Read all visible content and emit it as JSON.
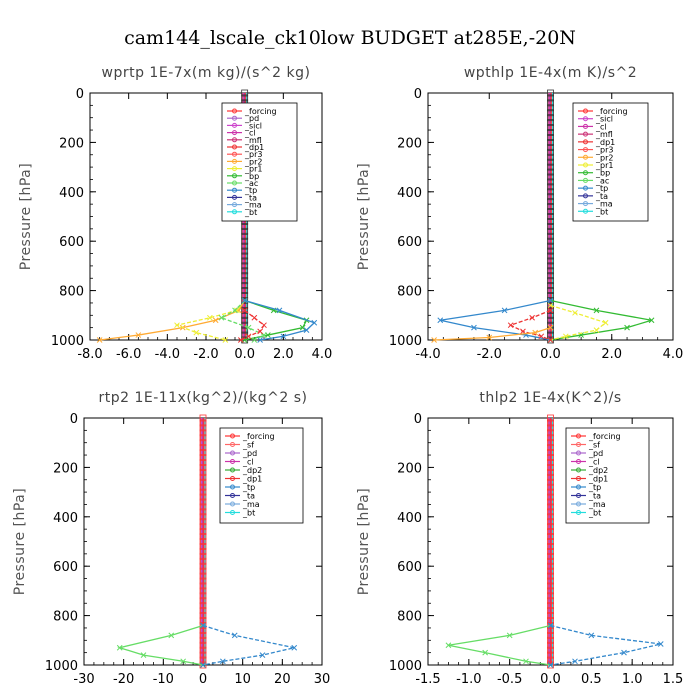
{
  "title": "cam144_lscale_ck10low  BUDGET at285E,-20N",
  "colors": {
    "forcing": "#ff3333",
    "pd": "#aa66cc",
    "sicl": "#cc44cc",
    "cl": "#cc33aa",
    "mfl": "#cc3377",
    "dp1": "#ee3333",
    "pr3": "#ff5555",
    "pr2": "#ffaa33",
    "pr1": "#eeee33",
    "bp": "#33bb33",
    "ac": "#66dd66",
    "tp": "#3388cc",
    "ta": "#333399",
    "ma": "#77aadd",
    "bt": "#22dddd",
    "sf": "#ff6666",
    "dp2": "#33aa33",
    "axis": "#000000"
  },
  "chart_data": [
    {
      "type": "line",
      "title": "wprtp  1E-7x(m kg)/(s^2 kg)",
      "ylabel": "Pressure [hPa]",
      "xlim": [
        -8,
        4
      ],
      "ylim": [
        1000,
        0
      ],
      "xticks": [
        "-8.0",
        "-6.0",
        "-4.0",
        "-2.0",
        "0.0",
        "2.0",
        "4.0"
      ],
      "yticks": [
        "0",
        "200",
        "400",
        "600",
        "800",
        "1000"
      ],
      "legend": [
        "_forcing",
        "_pd",
        "_sicl",
        "_cl",
        "_mfl",
        "_dp1",
        "_pr3",
        "_pr2",
        "_pr1",
        "_bp",
        "_ac",
        "_tp",
        "_ta",
        "_ma",
        "_bt"
      ],
      "legend_position": "top-right",
      "series": [
        {
          "name": "_pr2",
          "color_key": "pr2",
          "x": [
            0,
            -0.3,
            -1.5,
            -3.2,
            -5.5,
            -7.5
          ],
          "y": [
            840,
            880,
            920,
            950,
            980,
            1000
          ]
        },
        {
          "name": "_pr1",
          "color_key": "pr1",
          "x": [
            0,
            -0.4,
            -1.8,
            -3.5,
            -2.5,
            -1.0
          ],
          "y": [
            840,
            880,
            910,
            940,
            970,
            1000
          ]
        },
        {
          "name": "_bp",
          "color_key": "bp",
          "x": [
            0,
            1.5,
            3.2,
            3.0,
            1.2,
            0
          ],
          "y": [
            840,
            880,
            920,
            950,
            980,
            1000
          ]
        },
        {
          "name": "_ac",
          "color_key": "ac",
          "x": [
            0,
            -0.5,
            -1.2,
            0.2,
            1.0,
            0.5
          ],
          "y": [
            840,
            880,
            910,
            950,
            980,
            1000
          ]
        },
        {
          "name": "_tp",
          "color_key": "tp",
          "x": [
            0,
            1.8,
            3.6,
            3.2,
            2.0,
            0.8
          ],
          "y": [
            840,
            880,
            930,
            960,
            985,
            1000
          ]
        },
        {
          "name": "_dp1",
          "color_key": "dp1",
          "x": [
            0,
            0.5,
            1.0,
            0.8,
            0.2,
            -0.2
          ],
          "y": [
            880,
            910,
            940,
            965,
            985,
            1000
          ]
        }
      ]
    },
    {
      "type": "line",
      "title": "wpthlp  1E-4x(m K)/s^2",
      "ylabel": "Pressure [hPa]",
      "xlim": [
        -4,
        4
      ],
      "ylim": [
        1000,
        0
      ],
      "xticks": [
        "-4.0",
        "-2.0",
        "0.0",
        "2.0",
        "4.0"
      ],
      "yticks": [
        "0",
        "200",
        "400",
        "600",
        "800",
        "1000"
      ],
      "legend": [
        "_forcing",
        "_sicl",
        "_cl",
        "_mfl",
        "_dp1",
        "_pr3",
        "_pr2",
        "_pr1",
        "_bp",
        "_ac",
        "_tp",
        "_ta",
        "_ma",
        "_bt"
      ],
      "legend_position": "top-right",
      "series": [
        {
          "name": "_bp",
          "color_key": "bp",
          "x": [
            0,
            1.5,
            3.3,
            2.5,
            1.0,
            0
          ],
          "y": [
            840,
            880,
            920,
            950,
            980,
            1000
          ]
        },
        {
          "name": "_pr1",
          "color_key": "pr1",
          "x": [
            0,
            0.8,
            1.8,
            1.5,
            0.5,
            0
          ],
          "y": [
            860,
            890,
            930,
            960,
            985,
            1000
          ]
        },
        {
          "name": "_tp",
          "color_key": "tp",
          "x": [
            0,
            -1.5,
            -3.6,
            -2.5,
            -0.8,
            0
          ],
          "y": [
            840,
            880,
            920,
            950,
            980,
            1000
          ]
        },
        {
          "name": "_dp1",
          "color_key": "dp1",
          "x": [
            0,
            -0.6,
            -1.3,
            -0.9,
            -0.3,
            0
          ],
          "y": [
            880,
            910,
            940,
            965,
            985,
            1000
          ]
        },
        {
          "name": "_pr2",
          "color_key": "pr2",
          "x": [
            0,
            -0.5,
            -2.0,
            -3.8
          ],
          "y": [
            950,
            970,
            990,
            1000
          ]
        }
      ]
    },
    {
      "type": "line",
      "title": "rtp2  1E-11x(kg^2)/(kg^2 s)",
      "ylabel": "Pressure [hPa]",
      "xlim": [
        -30,
        30
      ],
      "ylim": [
        1000,
        0
      ],
      "xticks": [
        "-30",
        "-20",
        "-10",
        "0",
        "10",
        "20",
        "30"
      ],
      "yticks": [
        "0",
        "200",
        "400",
        "600",
        "800",
        "1000"
      ],
      "legend": [
        "_forcing",
        "_sf",
        "_pd",
        "_cl",
        "_dp2",
        "_dp1",
        "_tp",
        "_ta",
        "_ma",
        "_bt"
      ],
      "legend_position": "top-right",
      "series": [
        {
          "name": "_dp1",
          "color_key": "ac",
          "x": [
            0,
            -8,
            -21,
            -15,
            -5,
            0
          ],
          "y": [
            840,
            880,
            930,
            960,
            985,
            1000
          ]
        },
        {
          "name": "_tp",
          "color_key": "tp",
          "x": [
            0,
            8,
            23,
            15,
            5,
            0
          ],
          "y": [
            840,
            880,
            930,
            960,
            985,
            1000
          ]
        }
      ]
    },
    {
      "type": "line",
      "title": "thlp2  1E-4x(K^2)/s",
      "ylabel": "Pressure [hPa]",
      "xlim": [
        -1.5,
        1.5
      ],
      "ylim": [
        1000,
        0
      ],
      "xticks": [
        "-1.5",
        "-1.0",
        "-0.5",
        "0.0",
        "0.5",
        "1.0",
        "1.5"
      ],
      "yticks": [
        "0",
        "200",
        "400",
        "600",
        "800",
        "1000"
      ],
      "legend": [
        "_forcing",
        "_sf",
        "_pd",
        "_cl",
        "_dp2",
        "_dp1",
        "_tp",
        "_ta",
        "_ma",
        "_bt"
      ],
      "legend_position": "top-right",
      "series": [
        {
          "name": "_dp1",
          "color_key": "ac",
          "x": [
            0,
            -0.5,
            -1.25,
            -0.8,
            -0.3,
            0
          ],
          "y": [
            840,
            880,
            920,
            950,
            985,
            1000
          ]
        },
        {
          "name": "_tp",
          "color_key": "tp",
          "x": [
            0,
            0.5,
            1.35,
            0.9,
            0.3,
            0
          ],
          "y": [
            840,
            880,
            915,
            950,
            985,
            1000
          ]
        }
      ]
    }
  ]
}
